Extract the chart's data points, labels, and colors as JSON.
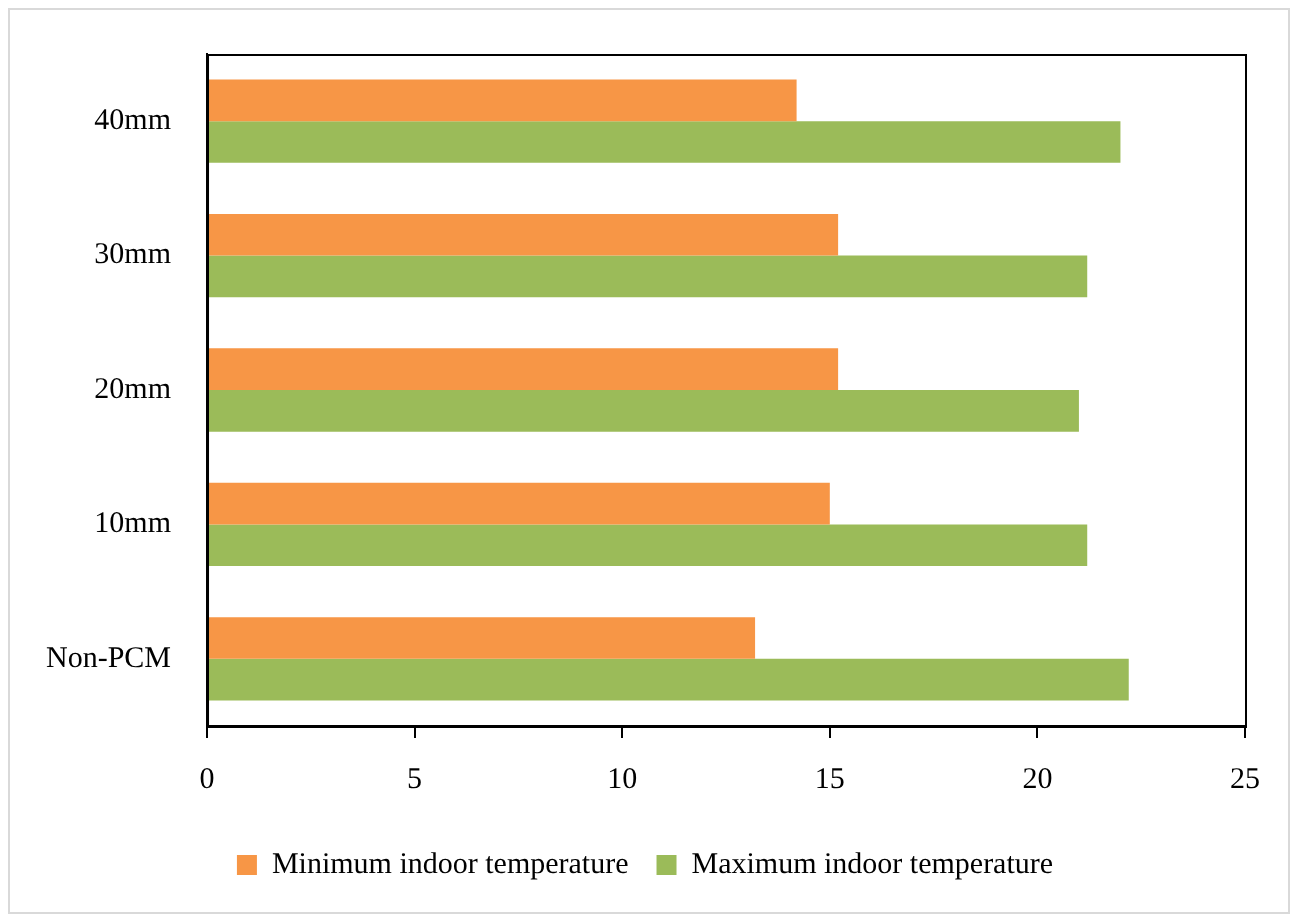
{
  "chart_data": {
    "type": "bar",
    "orientation": "horizontal",
    "categories": [
      "40mm",
      "30mm",
      "20mm",
      "10mm",
      "Non-PCM"
    ],
    "series": [
      {
        "name": "Minimum indoor temperature",
        "color": "#f79646",
        "values": [
          14.2,
          15.2,
          15.2,
          15.0,
          13.2
        ]
      },
      {
        "name": "Maximum indoor temperature",
        "color": "#9bbb59",
        "values": [
          22.0,
          21.2,
          21.0,
          21.2,
          22.2
        ]
      }
    ],
    "xlim": [
      0,
      25
    ],
    "xticks": [
      0,
      5,
      10,
      15,
      20,
      25
    ],
    "grid": false,
    "legend": "bottom"
  }
}
